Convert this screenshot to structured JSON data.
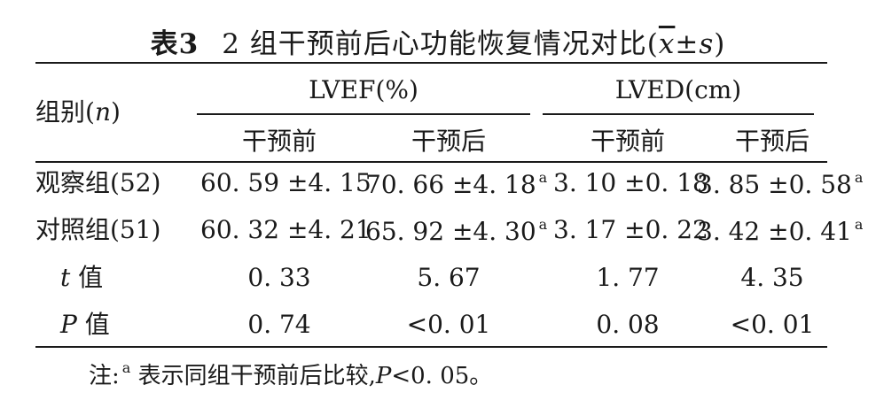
{
  "title": {
    "label": "表3",
    "text": "2 组干预前后心功能恢复情况对比",
    "stat_open": "(",
    "stat_x": "x",
    "stat_rest": "±s",
    "stat_close": ")"
  },
  "header": {
    "group_col": "组别",
    "group_n": "n",
    "lvef": "LVEF(%)",
    "lved": "LVED(cm)",
    "before": "干预前",
    "after": "干预后"
  },
  "rows": [
    {
      "label": "观察组(52)",
      "italic_prefix": "",
      "cells": [
        "60. 59 ±4. 15",
        "70. 66 ±4. 18",
        "3. 10 ±0. 18",
        "3. 85 ±0. 58"
      ],
      "sup": [
        "",
        "a",
        "",
        "a"
      ]
    },
    {
      "label": "对照组(51)",
      "italic_prefix": "",
      "cells": [
        "60. 32 ±4. 21",
        "65. 92 ±4. 30",
        "3. 17 ±0. 22",
        "3. 42 ±0. 41"
      ],
      "sup": [
        "",
        "a",
        "",
        "a"
      ]
    },
    {
      "label": "值",
      "italic_prefix": "t",
      "cells": [
        "0. 33",
        "5. 67",
        "1. 77",
        "4. 35"
      ],
      "sup": [
        "",
        "",
        "",
        ""
      ]
    },
    {
      "label": "值",
      "italic_prefix": "P",
      "cells": [
        "0. 74",
        "<0. 01",
        "0. 08",
        "<0. 01"
      ],
      "sup": [
        "",
        "",
        "",
        ""
      ]
    }
  ],
  "footnote": {
    "prefix": "注:",
    "sup": "a",
    "text": "表示同组干预前后比较,",
    "p": "P",
    "tail": "<0. 05。"
  }
}
